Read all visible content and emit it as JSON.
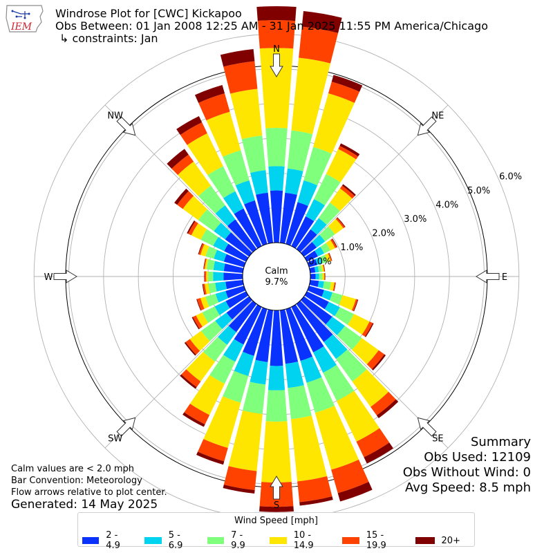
{
  "header": {
    "logo_text": "IEM",
    "title": "Windrose Plot for [CWC] Kickapoo",
    "subtitle": "Obs Between: 01 Jan 2008 12:25 AM - 31 Jan 2025 11:55 PM America/Chicago",
    "constraints": "↳ constraints: Jan"
  },
  "notes": {
    "calm": "Calm values are < 2.0 mph",
    "convention": "Bar Convention: Meteorology",
    "flow": "Flow arrows relative to plot center.",
    "generated": "Generated: 14 May 2025"
  },
  "summary": {
    "title": "Summary",
    "obs_used": "Obs Used: 12109",
    "obs_without_wind": "Obs Without Wind: 0",
    "avg_speed": "Avg Speed: 8.5 mph"
  },
  "center": {
    "label": "Calm",
    "value": "9.7%"
  },
  "legend": {
    "title": "Wind Speed [mph]"
  },
  "colors": {
    "2 - 4.9": "#0a32ff",
    "5 - 6.9": "#00d3f0",
    "7 - 9.9": "#80ff7c",
    "10 - 14.9": "#ffe600",
    "15 - 19.9": "#ff4200",
    "20+": "#800000"
  },
  "chart_data": {
    "type": "windrose",
    "calm_percent": 9.7,
    "radial_ticks": [
      "0.0%",
      "1.0%",
      "2.0%",
      "3.0%",
      "4.0%",
      "5.0%",
      "6.0%"
    ],
    "radial_range": [
      0,
      6
    ],
    "direction_labels": [
      "N",
      "NE",
      "E",
      "SE",
      "S",
      "SW",
      "W",
      "NW"
    ],
    "bin_width_deg": 10,
    "directions_deg": [
      0,
      10,
      20,
      30,
      40,
      50,
      60,
      70,
      80,
      90,
      100,
      110,
      120,
      130,
      140,
      150,
      160,
      170,
      180,
      190,
      200,
      210,
      220,
      230,
      240,
      250,
      260,
      270,
      280,
      290,
      300,
      310,
      320,
      330,
      340,
      350
    ],
    "speed_bins": [
      "2 - 4.9",
      "5 - 6.9",
      "7 - 9.9",
      "10 - 14.9",
      "15 - 19.9",
      "20+"
    ],
    "series": [
      {
        "name": "2 - 4.9",
        "values": [
          1.5,
          1.45,
          1.25,
          0.95,
          0.7,
          0.45,
          0.35,
          0.25,
          0.15,
          0.15,
          0.25,
          0.45,
          0.7,
          1.0,
          1.35,
          1.45,
          1.55,
          1.55,
          1.6,
          1.5,
          1.4,
          1.2,
          1.0,
          0.8,
          0.65,
          0.55,
          0.5,
          0.55,
          0.55,
          0.6,
          0.7,
          0.85,
          1.05,
          1.2,
          1.3,
          1.45
        ]
      },
      {
        "name": "5 - 6.9",
        "values": [
          0.7,
          0.7,
          0.65,
          0.55,
          0.4,
          0.3,
          0.2,
          0.15,
          0.1,
          0.1,
          0.15,
          0.25,
          0.35,
          0.45,
          0.6,
          0.65,
          0.65,
          0.7,
          0.7,
          0.65,
          0.6,
          0.55,
          0.45,
          0.4,
          0.35,
          0.3,
          0.3,
          0.3,
          0.3,
          0.3,
          0.35,
          0.4,
          0.5,
          0.55,
          0.6,
          0.65
        ]
      },
      {
        "name": "7 - 9.9",
        "values": [
          1.1,
          1.1,
          1.0,
          0.8,
          0.55,
          0.35,
          0.2,
          0.15,
          0.1,
          0.1,
          0.2,
          0.3,
          0.45,
          0.6,
          0.8,
          0.9,
          0.9,
          0.9,
          0.9,
          0.85,
          0.8,
          0.7,
          0.6,
          0.5,
          0.4,
          0.3,
          0.2,
          0.15,
          0.2,
          0.25,
          0.4,
          0.55,
          0.7,
          0.8,
          0.9,
          1.0
        ]
      },
      {
        "name": "10 - 14.9",
        "values": [
          2.3,
          2.1,
          1.6,
          0.8,
          0.5,
          0.3,
          0.15,
          0.1,
          0.05,
          0.05,
          0.1,
          0.4,
          0.5,
          0.6,
          0.9,
          1.3,
          1.7,
          1.8,
          1.75,
          1.65,
          1.35,
          1.0,
          0.7,
          0.4,
          0.2,
          0.15,
          0.1,
          0.05,
          0.05,
          0.15,
          0.3,
          0.55,
          0.85,
          1.05,
          1.15,
          1.35
        ]
      },
      {
        "name": "15 - 19.9",
        "values": [
          0.8,
          0.9,
          0.35,
          0.1,
          0.1,
          0.05,
          0.05,
          0.03,
          0.02,
          0.02,
          0.03,
          0.05,
          0.1,
          0.2,
          0.3,
          0.5,
          0.7,
          0.6,
          0.7,
          0.55,
          0.4,
          0.3,
          0.2,
          0.15,
          0.1,
          0.1,
          0.05,
          0.05,
          0.03,
          0.05,
          0.1,
          0.2,
          0.25,
          0.35,
          0.55,
          0.8
        ]
      },
      {
        "name": "20+",
        "values": [
          0.4,
          0.45,
          0.2,
          0.08,
          0.05,
          0.02,
          0.02,
          0.01,
          0.01,
          0.01,
          0.01,
          0.02,
          0.03,
          0.05,
          0.1,
          0.2,
          0.25,
          0.1,
          0.15,
          0.1,
          0.1,
          0.08,
          0.06,
          0.04,
          0.03,
          0.02,
          0.02,
          0.01,
          0.01,
          0.02,
          0.04,
          0.1,
          0.2,
          0.2,
          0.25,
          0.35
        ]
      }
    ],
    "flow_arrows": [
      "N",
      "NE",
      "E",
      "SE",
      "S",
      "SW",
      "W",
      "NW"
    ]
  }
}
